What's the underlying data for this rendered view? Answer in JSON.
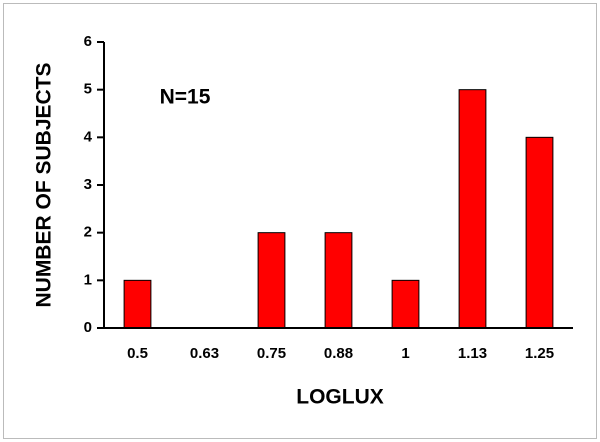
{
  "chart_data": {
    "type": "bar",
    "annotation": "N=15",
    "x_label": "LOGLUX",
    "y_label": "NUMBER OF SUBJECTS",
    "categories": [
      "0.5",
      "0.63",
      "0.75",
      "0.88",
      "1",
      "1.13",
      "1.25"
    ],
    "values": [
      1,
      0,
      2,
      2,
      1,
      5,
      4
    ],
    "color": "#ff0000",
    "ylim": [
      0,
      6
    ],
    "yticks": [
      0,
      1,
      2,
      3,
      4,
      5,
      6
    ],
    "grid": false
  }
}
